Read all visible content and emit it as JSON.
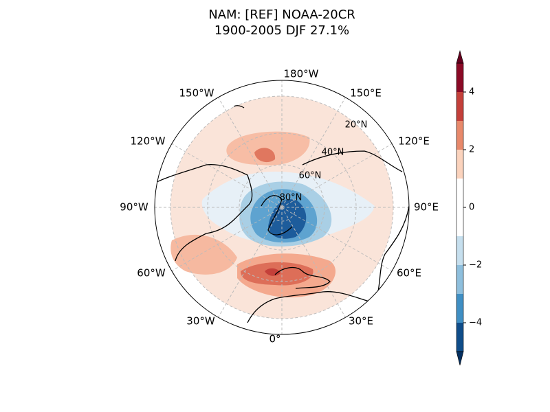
{
  "title": "NAM: [REF] NOAA-20CR",
  "subtitle": "1900-2005 DJF 27.1%",
  "lon_labels": [
    "180°W",
    "150°E",
    "120°E",
    "90°E",
    "60°E",
    "30°E",
    "0°",
    "30°W",
    "60°W",
    "90°W",
    "120°W",
    "150°W"
  ],
  "lat_labels": [
    "20°N",
    "40°N",
    "60°N",
    "80°N"
  ],
  "colorbar": {
    "lim": [
      -5,
      5
    ],
    "levels": [
      -5,
      -4,
      -3,
      -2,
      -1,
      1,
      2,
      3,
      4,
      5
    ],
    "colors": [
      "#0f4d8a",
      "#3f8fc4",
      "#8ebfdd",
      "#c6dfee",
      "#ffffff",
      "#fbd3bd",
      "#e8896b",
      "#c4403a",
      "#8b0a26"
    ],
    "under_color": "#053061",
    "over_color": "#67001f",
    "ticks": [
      {
        "value": -4,
        "label": "−4"
      },
      {
        "value": -2,
        "label": "−2"
      },
      0,
      2,
      4
    ]
  }
}
